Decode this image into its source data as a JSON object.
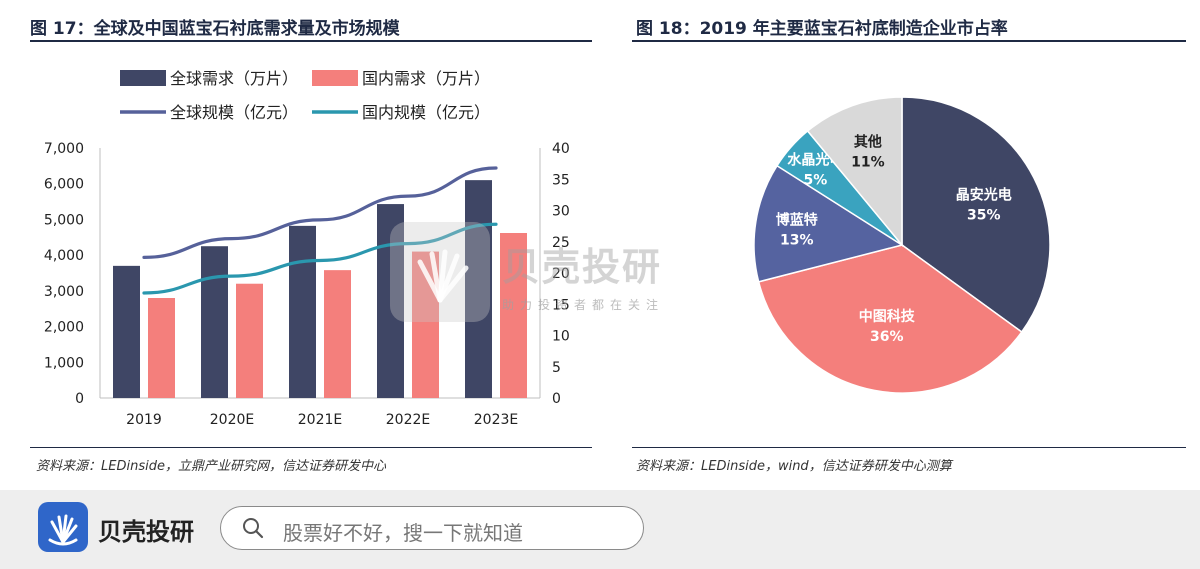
{
  "left_panel": {
    "title": "图 17：全球及中国蓝宝石衬底需求量及市场规模",
    "source": "资料来源：LEDinside，立鼎产业研究网，信达证券研发中心"
  },
  "right_panel": {
    "title": "图 18：2019 年主要蓝宝石衬底制造企业市占率",
    "source": "资料来源：LEDinside，wind，信达证券研发中心测算"
  },
  "watermark": {
    "text": "贝壳投研",
    "subtext": "助力投资者都在关注"
  },
  "footer": {
    "brand": "贝壳投研",
    "search_placeholder": "股票好不好，搜一下就知道"
  },
  "colors": {
    "navy": "#3f4665",
    "salmon": "#f47f7c",
    "line_navy": "#56619a",
    "line_teal": "#2a97ae",
    "pie_blue": "#5563a0",
    "pie_teal": "#3aa3bf",
    "pie_gray": "#d9d9d9"
  },
  "chart_data": [
    {
      "type": "bar",
      "categories": [
        "2019",
        "2020E",
        "2021E",
        "2022E",
        "2023E"
      ],
      "series": [
        {
          "name": "全球需求（万片）",
          "kind": "bar",
          "axis": "left",
          "color": "#3f4665",
          "values": [
            3700,
            4250,
            4820,
            5430,
            6100
          ]
        },
        {
          "name": "国内需求（万片）",
          "kind": "bar",
          "axis": "left",
          "color": "#f47f7c",
          "values": [
            2800,
            3200,
            3580,
            4100,
            4620
          ]
        },
        {
          "name": "全球规模（亿元）",
          "kind": "line",
          "axis": "right",
          "color": "#56619a",
          "values": [
            22.5,
            25.5,
            28.5,
            32.3,
            36.8
          ]
        },
        {
          "name": "国内规模（亿元）",
          "kind": "line",
          "axis": "right",
          "color": "#2a97ae",
          "values": [
            16.8,
            19.5,
            22.0,
            24.7,
            27.8
          ]
        }
      ],
      "ylim": [
        0,
        7000
      ],
      "y_ticks": [
        "0",
        "1,000",
        "2,000",
        "3,000",
        "4,000",
        "5,000",
        "6,000",
        "7,000"
      ],
      "y2lim": [
        0,
        40
      ],
      "y2_ticks": [
        "0",
        "5",
        "10",
        "15",
        "20",
        "25",
        "30",
        "35",
        "40"
      ],
      "legend_position": "top"
    },
    {
      "type": "pie",
      "slices": [
        {
          "label": "晶安光电",
          "value": 35,
          "text": "35%",
          "color": "#3f4665",
          "label_color": "#ffffff"
        },
        {
          "label": "中图科技",
          "value": 36,
          "text": "36%",
          "color": "#f47f7c",
          "label_color": "#ffffff"
        },
        {
          "label": "博蓝特",
          "value": 13,
          "text": "13%",
          "color": "#5563a0",
          "label_color": "#ffffff"
        },
        {
          "label": "水晶光电",
          "value": 5,
          "text": "5%",
          "color": "#3aa3bf",
          "label_color": "#ffffff"
        },
        {
          "label": "其他",
          "value": 11,
          "text": "11%",
          "color": "#d9d9d9",
          "label_color": "#222222"
        }
      ]
    }
  ]
}
